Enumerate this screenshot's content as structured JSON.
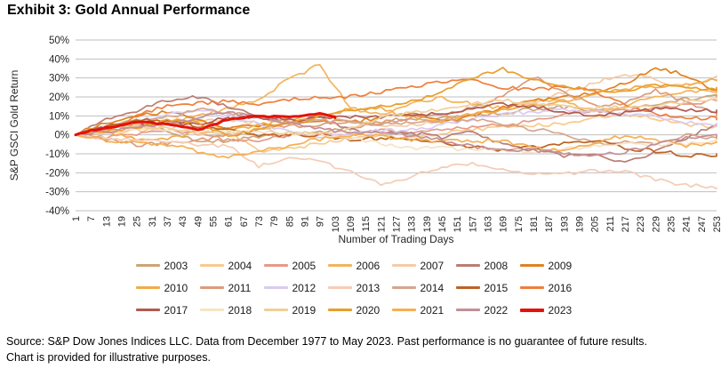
{
  "title": "Exhibit 3: Gold Annual Performance",
  "footer": {
    "line1": "Source: S&P Dow Jones Indices LLC. Data from December 1977 to May 2023. Past performance is no guarantee of future results.",
    "line2": "Chart is provided for illustrative purposes."
  },
  "colors": {
    "gridline": "#BFBFBF",
    "axis_text": "#262626",
    "highlight_red": "#E3120B"
  },
  "chart_data": {
    "type": "line",
    "title": "Exhibit 3: Gold Annual Performance",
    "xlabel": "Number of Trading Days",
    "ylabel": "S&P GSCI Gold Return",
    "unit": "percent",
    "xlim": [
      1,
      253
    ],
    "ylim": [
      -40,
      50
    ],
    "grid": true,
    "legend_position": "bottom",
    "y_ticks": [
      50,
      40,
      30,
      20,
      10,
      0,
      -10,
      -20,
      -30,
      -40
    ],
    "x_ticks": [
      1,
      7,
      13,
      19,
      25,
      31,
      37,
      43,
      49,
      55,
      61,
      67,
      73,
      79,
      85,
      91,
      97,
      103,
      109,
      115,
      121,
      127,
      133,
      139,
      145,
      151,
      157,
      163,
      169,
      175,
      181,
      187,
      193,
      199,
      205,
      211,
      217,
      223,
      229,
      235,
      241,
      247,
      253
    ],
    "anchor_days": [
      1,
      13,
      25,
      37,
      49,
      61,
      73,
      85,
      97,
      109,
      121,
      133,
      145,
      157,
      169,
      181,
      193,
      205,
      217,
      229,
      241,
      253
    ],
    "series": [
      {
        "name": "2003",
        "color": "#CFA376",
        "values": [
          0,
          4,
          7,
          3,
          -2,
          -4,
          -2,
          0,
          2,
          4,
          6,
          8,
          9,
          11,
          12,
          13,
          14,
          13,
          15,
          16,
          18,
          20
        ]
      },
      {
        "name": "2004",
        "color": "#F9C98E",
        "values": [
          0,
          2,
          3,
          5,
          7,
          2,
          -8,
          -7,
          -5,
          -3,
          -1,
          0,
          1,
          2,
          3,
          5,
          7,
          9,
          10,
          8,
          6,
          5
        ]
      },
      {
        "name": "2005",
        "color": "#E69A87",
        "values": [
          0,
          -1,
          0,
          2,
          1,
          -2,
          -3,
          -1,
          0,
          1,
          3,
          1,
          2,
          4,
          6,
          8,
          10,
          12,
          13,
          15,
          16,
          18
        ]
      },
      {
        "name": "2006",
        "color": "#F3B45C",
        "values": [
          0,
          4,
          6,
          8,
          10,
          13,
          18,
          30,
          38,
          14,
          10,
          16,
          20,
          17,
          14,
          17,
          18,
          13,
          16,
          20,
          22,
          23
        ]
      },
      {
        "name": "2007",
        "color": "#F4CBA6",
        "values": [
          0,
          3,
          5,
          2,
          6,
          8,
          7,
          6,
          9,
          7,
          5,
          6,
          7,
          9,
          13,
          18,
          23,
          27,
          31,
          29,
          26,
          31
        ]
      },
      {
        "name": "2008",
        "color": "#BA7D74",
        "values": [
          0,
          8,
          12,
          18,
          21,
          15,
          10,
          6,
          9,
          4,
          2,
          0,
          -2,
          2,
          -4,
          -8,
          -12,
          -10,
          -14,
          -8,
          -2,
          5
        ]
      },
      {
        "name": "2009",
        "color": "#E0821F",
        "values": [
          0,
          6,
          11,
          13,
          8,
          3,
          5,
          7,
          8,
          6,
          8,
          11,
          8,
          10,
          14,
          17,
          20,
          23,
          27,
          34,
          31,
          24
        ]
      },
      {
        "name": "2010",
        "color": "#F2AB49",
        "values": [
          0,
          2,
          -2,
          -3,
          1,
          4,
          6,
          8,
          10,
          13,
          15,
          10,
          7,
          10,
          13,
          16,
          18,
          21,
          24,
          26,
          28,
          29
        ]
      },
      {
        "name": "2011",
        "color": "#DD9B79",
        "values": [
          0,
          -3,
          -6,
          -4,
          -2,
          0,
          2,
          4,
          6,
          8,
          6,
          8,
          11,
          15,
          21,
          30,
          22,
          15,
          18,
          24,
          16,
          10
        ]
      },
      {
        "name": "2012",
        "color": "#DACBEF",
        "values": [
          0,
          4,
          8,
          11,
          13,
          9,
          6,
          3,
          -1,
          0,
          2,
          3,
          6,
          8,
          10,
          12,
          14,
          13,
          11,
          9,
          7,
          6
        ]
      },
      {
        "name": "2013",
        "color": "#F5CBB5",
        "values": [
          0,
          -1,
          -3,
          -4,
          -5,
          -5,
          -16,
          -13,
          -15,
          -19,
          -25,
          -22,
          -18,
          -16,
          -18,
          -20,
          -21,
          -20,
          -19,
          -23,
          -26,
          -28
        ]
      },
      {
        "name": "2014",
        "color": "#D6A68C",
        "values": [
          0,
          3,
          6,
          10,
          14,
          11,
          8,
          7,
          9,
          7,
          5,
          6,
          8,
          9,
          6,
          2,
          0,
          -4,
          -3,
          -5,
          -1,
          -2
        ]
      },
      {
        "name": "2015",
        "color": "#BD6324",
        "values": [
          0,
          5,
          9,
          7,
          4,
          2,
          0,
          1,
          -1,
          -3,
          -2,
          -1,
          -4,
          -7,
          -9,
          -6,
          -4,
          -3,
          -8,
          -9,
          -10,
          -10
        ]
      },
      {
        "name": "2016",
        "color": "#F07E3C",
        "values": [
          0,
          3,
          9,
          15,
          17,
          19,
          16,
          18,
          19,
          21,
          23,
          25,
          27,
          29,
          26,
          24,
          25,
          22,
          16,
          12,
          9,
          8
        ]
      },
      {
        "name": "2017",
        "color": "#B05A51",
        "values": [
          0,
          3,
          5,
          7,
          6,
          8,
          9,
          8,
          10,
          9,
          8,
          10,
          12,
          14,
          16,
          14,
          12,
          11,
          12,
          13,
          12,
          13
        ]
      },
      {
        "name": "2018",
        "color": "#F7E3C4",
        "values": [
          0,
          3,
          4,
          2,
          1,
          2,
          3,
          1,
          -1,
          -2,
          -4,
          -6,
          -7,
          -9,
          -8,
          -8,
          -7,
          -6,
          -6,
          -5,
          -4,
          -3
        ]
      },
      {
        "name": "2019",
        "color": "#EFCF9A",
        "values": [
          0,
          2,
          3,
          3,
          2,
          1,
          2,
          0,
          1,
          4,
          9,
          11,
          13,
          17,
          19,
          16,
          15,
          14,
          15,
          16,
          17,
          18
        ]
      },
      {
        "name": "2020",
        "color": "#E99E2C",
        "values": [
          0,
          2,
          5,
          8,
          6,
          -2,
          3,
          8,
          10,
          12,
          14,
          18,
          24,
          30,
          34,
          28,
          26,
          25,
          23,
          26,
          24,
          25
        ]
      },
      {
        "name": "2021",
        "color": "#F6AF52",
        "values": [
          0,
          -2,
          -4,
          -6,
          -9,
          -11,
          -8,
          -6,
          -3,
          0,
          0,
          -2,
          -4,
          -4,
          -3,
          -6,
          -8,
          -5,
          -1,
          -2,
          -5,
          -4
        ]
      },
      {
        "name": "2022",
        "color": "#C48E97",
        "values": [
          0,
          1,
          3,
          6,
          10,
          12,
          8,
          6,
          4,
          2,
          0,
          -1,
          -3,
          -5,
          -7,
          -9,
          -10,
          -11,
          -8,
          -5,
          -2,
          -1
        ]
      },
      {
        "name": "2023",
        "color": "#E3120B",
        "bold": true,
        "anchor_days": [
          1,
          13,
          25,
          37,
          49,
          61,
          73,
          85,
          97,
          103
        ],
        "values": [
          0,
          4,
          7,
          6,
          2,
          8,
          10,
          10,
          11,
          9
        ]
      }
    ]
  }
}
